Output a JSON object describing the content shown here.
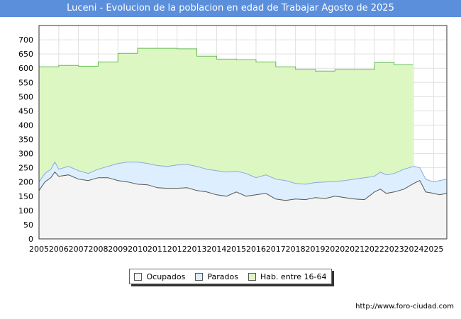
{
  "chart_data": {
    "type": "area",
    "title": "Luceni - Evolucion de la poblacion en edad de Trabajar Agosto de 2025",
    "ylim": [
      0,
      750
    ],
    "yticks": [
      0,
      50,
      100,
      150,
      200,
      250,
      300,
      350,
      400,
      450,
      500,
      550,
      600,
      650,
      700
    ],
    "xlim": [
      2005,
      2025.67
    ],
    "xticks": [
      "2005",
      "2006",
      "2007",
      "2008",
      "2009",
      "2010",
      "2011",
      "2012",
      "2013",
      "2014",
      "2015",
      "2016",
      "2017",
      "2018",
      "2019",
      "2020",
      "2021",
      "2022",
      "2023",
      "2024",
      "2025"
    ],
    "grid": true,
    "legend_position": "bottom",
    "series": [
      {
        "name": "Hab. entre 16-64",
        "color": "#ddf7c2",
        "line": "#66bb55",
        "x": [
          2005,
          2006,
          2006,
          2007,
          2007,
          2008,
          2008,
          2009,
          2009,
          2010,
          2010,
          2011,
          2011,
          2012,
          2012,
          2013,
          2013,
          2014,
          2014,
          2015,
          2015,
          2016,
          2016,
          2017,
          2017,
          2018,
          2018,
          2019,
          2019,
          2020,
          2020,
          2021,
          2021,
          2022,
          2022,
          2023,
          2023,
          2023.95
        ],
        "y": [
          605,
          605,
          610,
          610,
          607,
          607,
          622,
          622,
          652,
          652,
          670,
          670,
          670,
          670,
          668,
          668,
          642,
          642,
          632,
          632,
          630,
          630,
          622,
          622,
          605,
          605,
          596,
          596,
          590,
          590,
          595,
          595,
          595,
          595,
          620,
          620,
          612,
          612
        ]
      },
      {
        "name": "Parados",
        "color": "#ddeeff",
        "line": "#88aadd",
        "x": [
          2005,
          2005.3,
          2005.6,
          2005.8,
          2006,
          2006.5,
          2007,
          2007.5,
          2008,
          2008.5,
          2009,
          2009.5,
          2010,
          2010.5,
          2011,
          2011.5,
          2012,
          2012.5,
          2013,
          2013.5,
          2014,
          2014.5,
          2015,
          2015.5,
          2016,
          2016.5,
          2017,
          2017.5,
          2018,
          2018.5,
          2019,
          2019.5,
          2020,
          2020.5,
          2021,
          2021.5,
          2022,
          2022.3,
          2022.6,
          2023,
          2023.5,
          2024,
          2024.3,
          2024.6,
          2025,
          2025.3,
          2025.67
        ],
        "y": [
          200,
          230,
          245,
          270,
          245,
          255,
          240,
          230,
          245,
          255,
          265,
          270,
          270,
          265,
          258,
          255,
          260,
          262,
          255,
          245,
          240,
          235,
          238,
          230,
          215,
          225,
          210,
          205,
          195,
          192,
          198,
          200,
          202,
          205,
          210,
          215,
          220,
          235,
          225,
          230,
          245,
          255,
          250,
          210,
          200,
          205,
          210
        ]
      },
      {
        "name": "Ocupados",
        "color": "#f4f4f4",
        "line": "#555555",
        "x": [
          2005,
          2005.3,
          2005.6,
          2005.8,
          2006,
          2006.5,
          2007,
          2007.5,
          2008,
          2008.5,
          2009,
          2009.5,
          2010,
          2010.5,
          2011,
          2011.5,
          2012,
          2012.5,
          2013,
          2013.5,
          2014,
          2014.5,
          2015,
          2015.5,
          2016,
          2016.5,
          2017,
          2017.5,
          2018,
          2018.5,
          2019,
          2019.5,
          2020,
          2020.5,
          2021,
          2021.5,
          2022,
          2022.3,
          2022.6,
          2023,
          2023.5,
          2024,
          2024.3,
          2024.6,
          2025,
          2025.3,
          2025.67
        ],
        "y": [
          170,
          200,
          215,
          235,
          220,
          225,
          210,
          205,
          215,
          215,
          205,
          200,
          192,
          190,
          180,
          178,
          178,
          180,
          170,
          165,
          155,
          150,
          165,
          150,
          155,
          160,
          140,
          135,
          140,
          138,
          145,
          142,
          150,
          145,
          140,
          138,
          165,
          175,
          160,
          165,
          175,
          195,
          205,
          165,
          160,
          155,
          160
        ]
      }
    ]
  },
  "legend": {
    "ocupados": "Ocupados",
    "parados": "Parados",
    "hab": "Hab. entre 16-64"
  },
  "source": "http://www.foro-ciudad.com"
}
